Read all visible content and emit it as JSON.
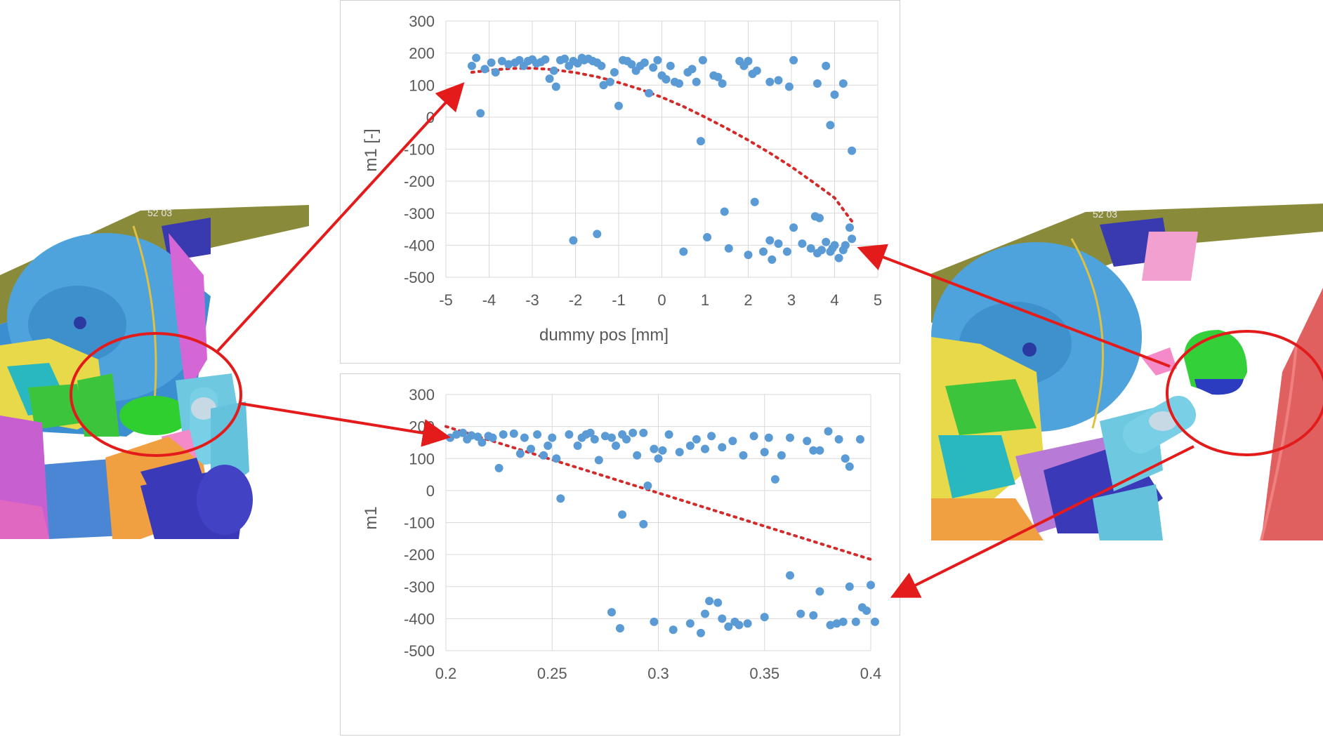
{
  "colors": {
    "point": "#5b9bd5",
    "trend": "#d32a2a",
    "grid": "#d9d9d9",
    "axis_text": "#595959",
    "annotation": "#e31b1b"
  },
  "render_stamp": "52 03",
  "chart_data": [
    {
      "type": "scatter",
      "title": "",
      "xlabel": "dummy pos [mm]",
      "ylabel": "m1 [-]",
      "xlim": [
        -5,
        5
      ],
      "ylim": [
        -500,
        300
      ],
      "xticks": [
        "-5",
        "-4",
        "-3",
        "-2",
        "-1",
        "0",
        "1",
        "2",
        "3",
        "4",
        "5"
      ],
      "yticks": [
        "300",
        "200",
        "100",
        "0",
        "-100",
        "-200",
        "-300",
        "-400",
        "-500"
      ],
      "grid": true,
      "trendline": {
        "type": "polynomial",
        "points": [
          [
            -4.4,
            140
          ],
          [
            -4,
            146
          ],
          [
            -3.5,
            152
          ],
          [
            -3,
            153
          ],
          [
            -2.5,
            148
          ],
          [
            -2,
            139
          ],
          [
            -1.5,
            126
          ],
          [
            -1,
            108
          ],
          [
            -0.5,
            87
          ],
          [
            0,
            62
          ],
          [
            0.5,
            33
          ],
          [
            1,
            0
          ],
          [
            1.5,
            -35
          ],
          [
            2,
            -72
          ],
          [
            2.5,
            -112
          ],
          [
            3,
            -155
          ],
          [
            3.5,
            -203
          ],
          [
            4,
            -252
          ],
          [
            4.4,
            -325
          ]
        ]
      },
      "points": [
        [
          -4.4,
          160
        ],
        [
          -4.3,
          185
        ],
        [
          -4.2,
          12
        ],
        [
          -4.1,
          150
        ],
        [
          -3.95,
          170
        ],
        [
          -3.85,
          140
        ],
        [
          -3.7,
          175
        ],
        [
          -3.55,
          165
        ],
        [
          -3.4,
          170
        ],
        [
          -3.3,
          178
        ],
        [
          -3.2,
          160
        ],
        [
          -3.1,
          175
        ],
        [
          -3.0,
          180
        ],
        [
          -2.9,
          168
        ],
        [
          -2.8,
          172
        ],
        [
          -2.7,
          180
        ],
        [
          -2.6,
          120
        ],
        [
          -2.5,
          145
        ],
        [
          -2.45,
          95
        ],
        [
          -2.35,
          178
        ],
        [
          -2.25,
          182
        ],
        [
          -2.15,
          160
        ],
        [
          -2.05,
          175
        ],
        [
          -1.95,
          168
        ],
        [
          -1.85,
          185
        ],
        [
          -1.8,
          178
        ],
        [
          -1.7,
          182
        ],
        [
          -1.6,
          175
        ],
        [
          -1.5,
          170
        ],
        [
          -1.4,
          160
        ],
        [
          -1.35,
          100
        ],
        [
          -1.2,
          110
        ],
        [
          -1.1,
          140
        ],
        [
          -1.0,
          35
        ],
        [
          -0.9,
          178
        ],
        [
          -0.8,
          175
        ],
        [
          -0.7,
          165
        ],
        [
          -0.6,
          145
        ],
        [
          -0.5,
          160
        ],
        [
          -0.4,
          170
        ],
        [
          -0.3,
          75
        ],
        [
          -0.2,
          155
        ],
        [
          -0.1,
          178
        ],
        [
          0.0,
          130
        ],
        [
          0.1,
          118
        ],
        [
          0.2,
          160
        ],
        [
          0.3,
          110
        ],
        [
          0.4,
          105
        ],
        [
          0.6,
          140
        ],
        [
          0.7,
          150
        ],
        [
          0.8,
          110
        ],
        [
          0.9,
          -75
        ],
        [
          0.95,
          178
        ],
        [
          1.2,
          130
        ],
        [
          1.3,
          125
        ],
        [
          1.4,
          105
        ],
        [
          1.8,
          175
        ],
        [
          1.9,
          160
        ],
        [
          2.0,
          175
        ],
        [
          2.1,
          135
        ],
        [
          2.2,
          145
        ],
        [
          2.5,
          110
        ],
        [
          2.7,
          115
        ],
        [
          2.95,
          95
        ],
        [
          3.05,
          178
        ],
        [
          3.6,
          105
        ],
        [
          3.8,
          160
        ],
        [
          3.9,
          -25
        ],
        [
          4.0,
          70
        ],
        [
          4.2,
          105
        ],
        [
          4.4,
          -105
        ],
        [
          -2.05,
          -385
        ],
        [
          -1.5,
          -365
        ],
        [
          0.5,
          -420
        ],
        [
          1.05,
          -375
        ],
        [
          1.45,
          -295
        ],
        [
          1.55,
          -410
        ],
        [
          2.0,
          -430
        ],
        [
          2.15,
          -265
        ],
        [
          2.35,
          -420
        ],
        [
          2.5,
          -385
        ],
        [
          2.55,
          -445
        ],
        [
          2.7,
          -395
        ],
        [
          2.9,
          -420
        ],
        [
          3.05,
          -345
        ],
        [
          3.25,
          -395
        ],
        [
          3.45,
          -410
        ],
        [
          3.55,
          -310
        ],
        [
          3.6,
          -425
        ],
        [
          3.65,
          -315
        ],
        [
          3.7,
          -415
        ],
        [
          3.8,
          -390
        ],
        [
          3.9,
          -420
        ],
        [
          3.95,
          -410
        ],
        [
          4.0,
          -400
        ],
        [
          4.1,
          -440
        ],
        [
          4.2,
          -415
        ],
        [
          4.25,
          -400
        ],
        [
          4.4,
          -380
        ],
        [
          4.35,
          -345
        ]
      ]
    },
    {
      "type": "scatter",
      "title": "",
      "xlabel": "",
      "ylabel": "m1",
      "xlim": [
        0.2,
        0.4
      ],
      "ylim": [
        -500,
        300
      ],
      "xticks": [
        "0.2",
        "0.25",
        "0.3",
        "0.35",
        "0.4"
      ],
      "yticks": [
        "300",
        "200",
        "100",
        "0",
        "-100",
        "-200",
        "-300",
        "-400",
        "-500"
      ],
      "grid": true,
      "trendline": {
        "type": "linear",
        "points": [
          [
            0.2,
            200
          ],
          [
            0.4,
            -215
          ]
        ]
      },
      "points": [
        [
          0.202,
          165
        ],
        [
          0.205,
          175
        ],
        [
          0.208,
          180
        ],
        [
          0.21,
          160
        ],
        [
          0.212,
          172
        ],
        [
          0.215,
          168
        ],
        [
          0.217,
          150
        ],
        [
          0.22,
          170
        ],
        [
          0.222,
          165
        ],
        [
          0.225,
          70
        ],
        [
          0.227,
          175
        ],
        [
          0.232,
          178
        ],
        [
          0.235,
          115
        ],
        [
          0.237,
          165
        ],
        [
          0.24,
          130
        ],
        [
          0.243,
          175
        ],
        [
          0.246,
          110
        ],
        [
          0.248,
          140
        ],
        [
          0.25,
          165
        ],
        [
          0.252,
          100
        ],
        [
          0.254,
          -25
        ],
        [
          0.258,
          175
        ],
        [
          0.262,
          140
        ],
        [
          0.264,
          165
        ],
        [
          0.266,
          175
        ],
        [
          0.268,
          180
        ],
        [
          0.27,
          160
        ],
        [
          0.272,
          95
        ],
        [
          0.275,
          170
        ],
        [
          0.278,
          165
        ],
        [
          0.28,
          140
        ],
        [
          0.283,
          175
        ],
        [
          0.285,
          160
        ],
        [
          0.288,
          180
        ],
        [
          0.29,
          110
        ],
        [
          0.293,
          180
        ],
        [
          0.295,
          15
        ],
        [
          0.298,
          130
        ],
        [
          0.3,
          100
        ],
        [
          0.302,
          125
        ],
        [
          0.305,
          175
        ],
        [
          0.31,
          120
        ],
        [
          0.315,
          140
        ],
        [
          0.318,
          160
        ],
        [
          0.322,
          130
        ],
        [
          0.325,
          170
        ],
        [
          0.33,
          135
        ],
        [
          0.335,
          155
        ],
        [
          0.34,
          110
        ],
        [
          0.345,
          170
        ],
        [
          0.35,
          120
        ],
        [
          0.352,
          165
        ],
        [
          0.355,
          35
        ],
        [
          0.358,
          110
        ],
        [
          0.362,
          165
        ],
        [
          0.37,
          155
        ],
        [
          0.373,
          125
        ],
        [
          0.376,
          125
        ],
        [
          0.38,
          185
        ],
        [
          0.385,
          160
        ],
        [
          0.388,
          100
        ],
        [
          0.39,
          75
        ],
        [
          0.395,
          160
        ],
        [
          0.283,
          -75
        ],
        [
          0.293,
          -105
        ],
        [
          0.278,
          -380
        ],
        [
          0.282,
          -430
        ],
        [
          0.298,
          -410
        ],
        [
          0.307,
          -435
        ],
        [
          0.315,
          -415
        ],
        [
          0.32,
          -445
        ],
        [
          0.322,
          -385
        ],
        [
          0.324,
          -345
        ],
        [
          0.328,
          -350
        ],
        [
          0.33,
          -400
        ],
        [
          0.333,
          -425
        ],
        [
          0.336,
          -410
        ],
        [
          0.338,
          -420
        ],
        [
          0.342,
          -415
        ],
        [
          0.35,
          -395
        ],
        [
          0.362,
          -265
        ],
        [
          0.367,
          -385
        ],
        [
          0.373,
          -390
        ],
        [
          0.376,
          -315
        ],
        [
          0.381,
          -420
        ],
        [
          0.384,
          -415
        ],
        [
          0.387,
          -410
        ],
        [
          0.39,
          -300
        ],
        [
          0.393,
          -410
        ],
        [
          0.396,
          -365
        ],
        [
          0.398,
          -375
        ],
        [
          0.4,
          -295
        ],
        [
          0.402,
          -410
        ]
      ]
    }
  ]
}
